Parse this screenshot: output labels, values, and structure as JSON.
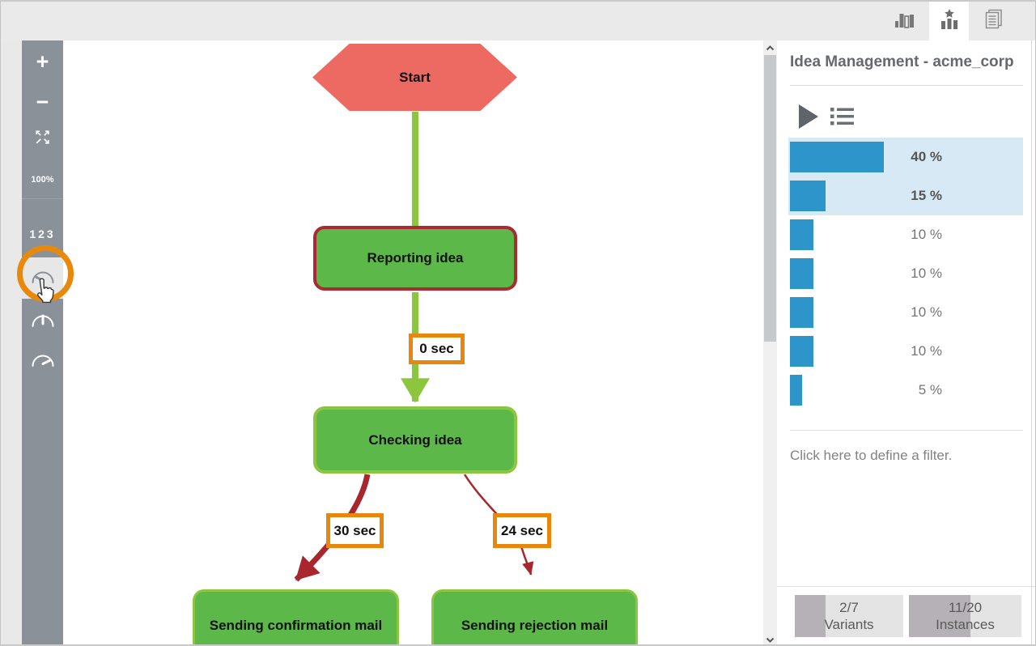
{
  "topbar": {
    "tabs": [
      {
        "name": "process-discovery",
        "icon": "bar-chart-icon",
        "active": false
      },
      {
        "name": "variants-explorer",
        "icon": "star-chart-icon",
        "active": true
      },
      {
        "name": "attributes",
        "icon": "document-icon",
        "active": false
      }
    ]
  },
  "sidebar": {
    "zoom_in": "+",
    "zoom_out": "−",
    "zoom_level": "100%",
    "numbers": "123",
    "gauges": [
      "duration-gauge-low",
      "duration-gauge-mid",
      "duration-gauge-high"
    ]
  },
  "diagram": {
    "nodes": [
      {
        "id": "start",
        "label": "Start"
      },
      {
        "id": "reporting",
        "label": "Reporting idea"
      },
      {
        "id": "checking",
        "label": "Checking idea"
      },
      {
        "id": "confirmation",
        "label": "Sending confirmation mail"
      },
      {
        "id": "rejection",
        "label": "Sending rejection mail"
      }
    ],
    "edge_labels": [
      {
        "id": "reporting-to-checking",
        "label": "0 sec"
      },
      {
        "id": "checking-to-confirmation",
        "label": "30 sec"
      },
      {
        "id": "checking-to-rejection",
        "label": "24 sec"
      }
    ]
  },
  "panel": {
    "title": "Idea Management - acme_corp",
    "variant_percentages": [
      40,
      15,
      10,
      10,
      10,
      10,
      5
    ],
    "selected_variants": [
      0,
      1
    ],
    "filter_hint": "Click here to define a filter.",
    "footer": {
      "variants_value": "2/7",
      "variants_label": "Variants",
      "variants_fill": 0.286,
      "instances_value": "11/20",
      "instances_label": "Instances",
      "instances_fill": 0.55
    }
  },
  "colors": {
    "accent_blue": "#2e95cb",
    "selection_blue": "#d6e9f5",
    "node_green": "#5cb848",
    "edge_green": "#8cc63f",
    "node_red": "#ed6a63",
    "edge_dark_red": "#a8272e",
    "label_orange": "#e8870e",
    "sidebar_gray": "#8a9199",
    "annotation_orange": "#e8890c"
  }
}
